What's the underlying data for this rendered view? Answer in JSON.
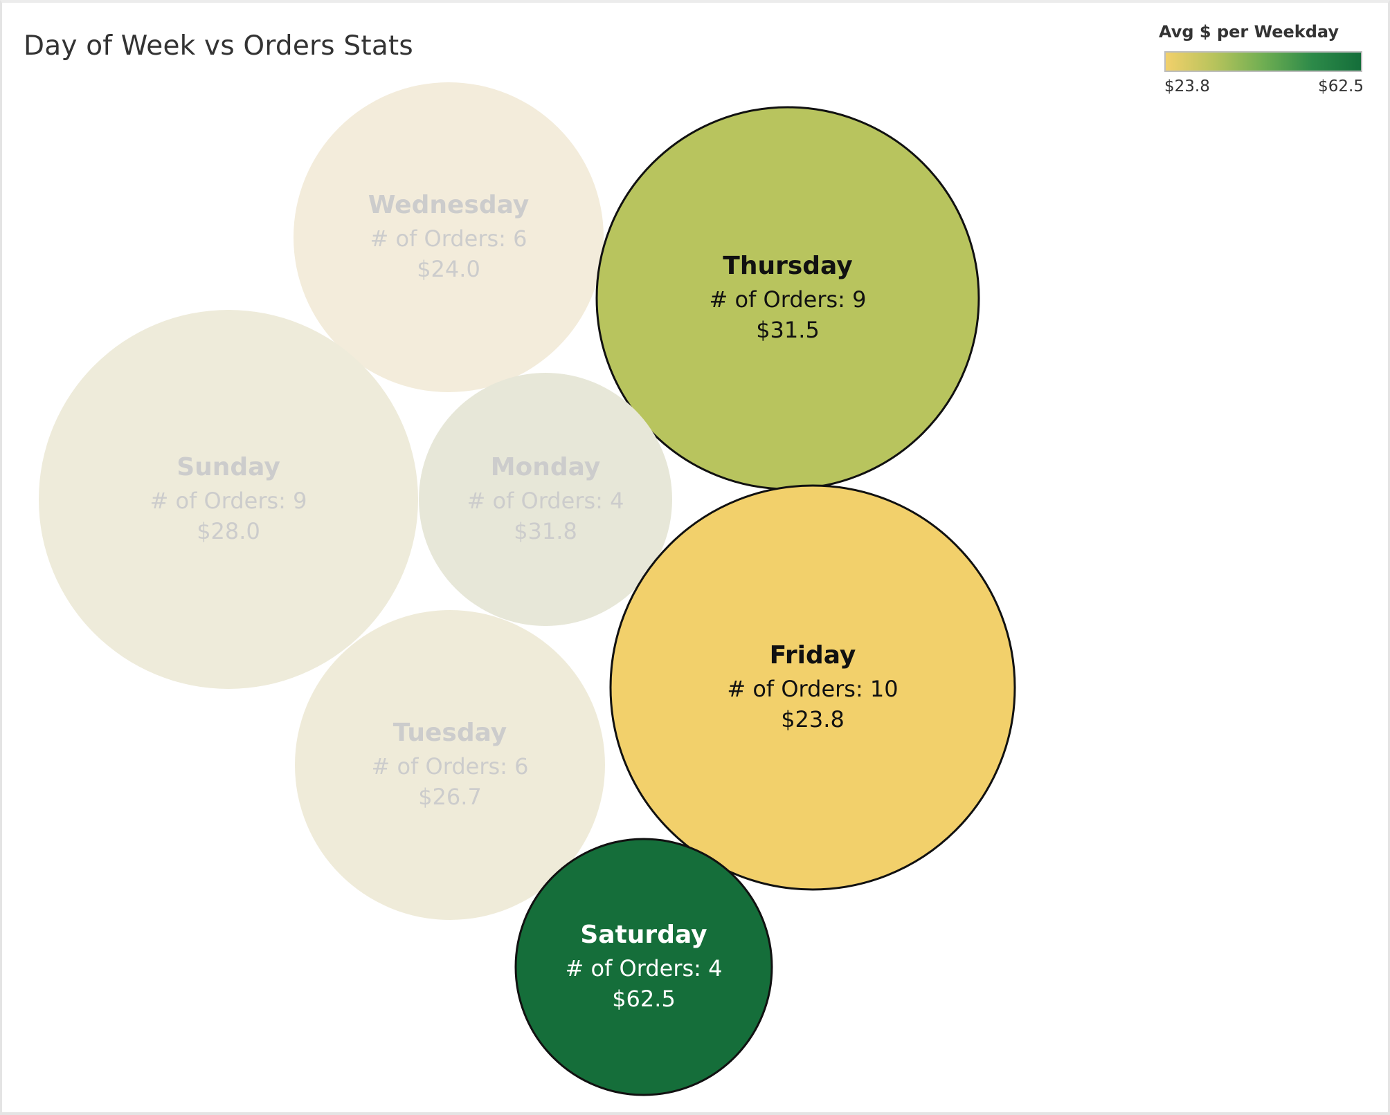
{
  "title": "Day of Week vs Orders Stats",
  "legend": {
    "title": "Avg $ per Weekday",
    "min_label": "$23.8",
    "max_label": "$62.5",
    "colors": [
      "#f2d06b",
      "#b7c35c",
      "#6fae52",
      "#2d8a49",
      "#146e3a"
    ]
  },
  "chart_data": {
    "type": "bubble",
    "size_measure": "# of Orders",
    "color_measure": "Avg $ per Weekday",
    "color_range": [
      23.8,
      62.5
    ],
    "points": [
      {
        "day": "Wednesday",
        "orders": 6,
        "orders_label": "# of Orders: 6",
        "avg": 24.0,
        "avg_label": "$24.0",
        "highlighted": false,
        "fill": "#f3ecdb",
        "text_color": "#cccccc"
      },
      {
        "day": "Thursday",
        "orders": 9,
        "orders_label": "# of Orders: 9",
        "avg": 31.5,
        "avg_label": "$31.5",
        "highlighted": true,
        "fill": "#b8c45e",
        "text_color": "#111111"
      },
      {
        "day": "Sunday",
        "orders": 9,
        "orders_label": "# of Orders: 9",
        "avg": 28.0,
        "avg_label": "$28.0",
        "highlighted": false,
        "fill": "#eeebda",
        "text_color": "#cccccc"
      },
      {
        "day": "Monday",
        "orders": 4,
        "orders_label": "# of Orders: 4",
        "avg": 31.8,
        "avg_label": "$31.8",
        "highlighted": false,
        "fill": "#e7e7d8",
        "text_color": "#cccccc"
      },
      {
        "day": "Friday",
        "orders": 10,
        "orders_label": "# of Orders: 10",
        "avg": 23.8,
        "avg_label": "$23.8",
        "highlighted": true,
        "fill": "#f2d06b",
        "text_color": "#111111"
      },
      {
        "day": "Tuesday",
        "orders": 6,
        "orders_label": "# of Orders: 6",
        "avg": 26.7,
        "avg_label": "$26.7",
        "highlighted": false,
        "fill": "#efebd9",
        "text_color": "#cccccc"
      },
      {
        "day": "Saturday",
        "orders": 4,
        "orders_label": "# of Orders: 4",
        "avg": 62.5,
        "avg_label": "$62.5",
        "highlighted": true,
        "fill": "#156e3a",
        "text_color": "#ffffff"
      }
    ]
  }
}
